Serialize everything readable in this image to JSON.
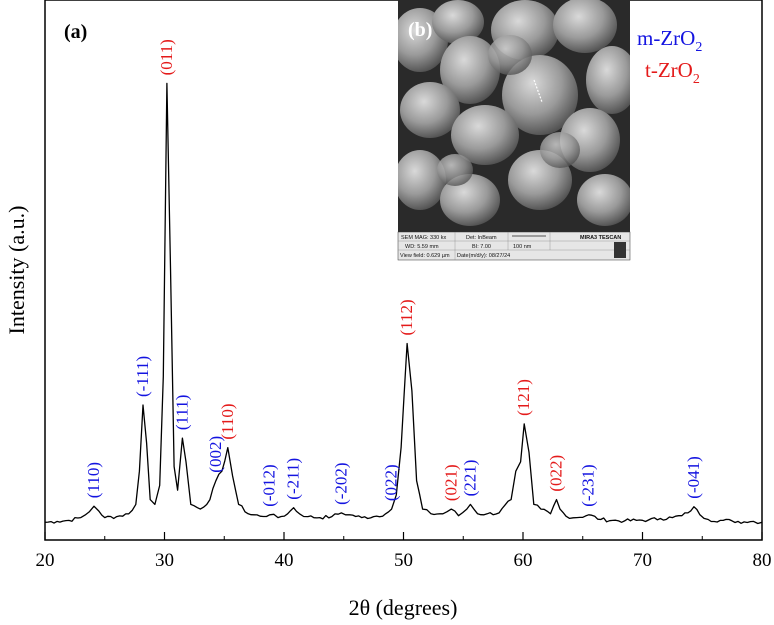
{
  "chart_data": {
    "type": "line",
    "panel_label_a": "(a)",
    "xlabel": "2θ (degrees)",
    "ylabel": "Intensity (a.u.)",
    "xlim": [
      20,
      80
    ],
    "ylim": [
      0,
      1
    ],
    "xticks": [
      20,
      30,
      40,
      50,
      60,
      70,
      80
    ],
    "grid": false,
    "series": [
      {
        "values_note": "relative intensity",
        "color": "#000000",
        "points": [
          [
            20,
            0.012
          ],
          [
            21,
            0.014
          ],
          [
            22,
            0.016
          ],
          [
            23,
            0.022
          ],
          [
            23.7,
            0.034
          ],
          [
            24.1,
            0.046
          ],
          [
            24.5,
            0.036
          ],
          [
            25,
            0.022
          ],
          [
            26,
            0.024
          ],
          [
            27,
            0.03
          ],
          [
            27.6,
            0.05
          ],
          [
            27.9,
            0.12
          ],
          [
            28.2,
            0.26
          ],
          [
            28.5,
            0.18
          ],
          [
            28.8,
            0.06
          ],
          [
            29.2,
            0.05
          ],
          [
            29.6,
            0.09
          ],
          [
            29.9,
            0.32
          ],
          [
            30.2,
            0.94
          ],
          [
            30.5,
            0.55
          ],
          [
            30.8,
            0.13
          ],
          [
            31.1,
            0.08
          ],
          [
            31.5,
            0.19
          ],
          [
            31.8,
            0.14
          ],
          [
            32.2,
            0.05
          ],
          [
            33,
            0.04
          ],
          [
            33.8,
            0.06
          ],
          [
            34.3,
            0.1
          ],
          [
            34.8,
            0.12
          ],
          [
            35.3,
            0.17
          ],
          [
            35.7,
            0.11
          ],
          [
            36.2,
            0.05
          ],
          [
            37,
            0.03
          ],
          [
            38,
            0.025
          ],
          [
            38.8,
            0.028
          ],
          [
            39.5,
            0.022
          ],
          [
            40.3,
            0.03
          ],
          [
            40.8,
            0.043
          ],
          [
            41.3,
            0.03
          ],
          [
            42,
            0.024
          ],
          [
            43,
            0.022
          ],
          [
            44,
            0.024
          ],
          [
            44.8,
            0.032
          ],
          [
            45.5,
            0.028
          ],
          [
            46.5,
            0.022
          ],
          [
            47.5,
            0.024
          ],
          [
            48.5,
            0.03
          ],
          [
            49,
            0.04
          ],
          [
            49.4,
            0.07
          ],
          [
            49.8,
            0.17
          ],
          [
            50.3,
            0.39
          ],
          [
            50.7,
            0.29
          ],
          [
            51.1,
            0.1
          ],
          [
            51.6,
            0.04
          ],
          [
            52.3,
            0.03
          ],
          [
            53.3,
            0.03
          ],
          [
            54,
            0.04
          ],
          [
            54.6,
            0.026
          ],
          [
            55.3,
            0.04
          ],
          [
            55.6,
            0.05
          ],
          [
            56.2,
            0.03
          ],
          [
            57,
            0.03
          ],
          [
            58,
            0.032
          ],
          [
            59,
            0.06
          ],
          [
            59.4,
            0.12
          ],
          [
            59.8,
            0.14
          ],
          [
            60.1,
            0.22
          ],
          [
            60.5,
            0.16
          ],
          [
            60.9,
            0.05
          ],
          [
            61.5,
            0.04
          ],
          [
            62.3,
            0.03
          ],
          [
            62.8,
            0.06
          ],
          [
            63.1,
            0.04
          ],
          [
            63.6,
            0.025
          ],
          [
            64.5,
            0.022
          ],
          [
            65.5,
            0.028
          ],
          [
            66.5,
            0.018
          ],
          [
            67.5,
            0.016
          ],
          [
            68.5,
            0.015
          ],
          [
            69.5,
            0.016
          ],
          [
            70.5,
            0.017
          ],
          [
            71.5,
            0.02
          ],
          [
            72.5,
            0.022
          ],
          [
            73.3,
            0.026
          ],
          [
            73.8,
            0.032
          ],
          [
            74.3,
            0.045
          ],
          [
            74.8,
            0.028
          ],
          [
            75.5,
            0.018
          ],
          [
            76.5,
            0.016
          ],
          [
            77.5,
            0.015
          ],
          [
            78.5,
            0.013
          ],
          [
            79.3,
            0.014
          ],
          [
            80,
            0.012
          ]
        ]
      }
    ],
    "peak_labels": [
      {
        "text": "(110)",
        "x": 24.1,
        "phase": "m"
      },
      {
        "text": "(-111)",
        "x": 28.2,
        "phase": "m"
      },
      {
        "text": "(011)",
        "x": 30.2,
        "phase": "t"
      },
      {
        "text": "(111)",
        "x": 31.5,
        "phase": "m"
      },
      {
        "text": "(002)",
        "x": 34.3,
        "phase": "m"
      },
      {
        "text": "(110)",
        "x": 35.3,
        "phase": "t"
      },
      {
        "text": "(-012)",
        "x": 38.8,
        "phase": "m"
      },
      {
        "text": "(-211)",
        "x": 40.8,
        "phase": "m"
      },
      {
        "text": "(-202)",
        "x": 44.8,
        "phase": "m"
      },
      {
        "text": "(022)",
        "x": 49.0,
        "phase": "m"
      },
      {
        "text": "(112)",
        "x": 50.3,
        "phase": "t"
      },
      {
        "text": "(021)",
        "x": 54.0,
        "phase": "t"
      },
      {
        "text": "(221)",
        "x": 55.6,
        "phase": "m"
      },
      {
        "text": "(121)",
        "x": 60.1,
        "phase": "t"
      },
      {
        "text": "(022)",
        "x": 62.8,
        "phase": "t"
      },
      {
        "text": "(-231)",
        "x": 65.5,
        "phase": "m"
      },
      {
        "text": "(-041)",
        "x": 74.3,
        "phase": "m"
      }
    ],
    "legend": {
      "placement": "top-right",
      "entries": [
        {
          "phase": "m",
          "prefix": "m-ZrO",
          "sub": "2",
          "color": "#1414e0"
        },
        {
          "phase": "t",
          "prefix": "t-ZrO",
          "sub": "2",
          "color": "#e41a1a"
        }
      ]
    },
    "inset": {
      "panel_label": "(b)",
      "placement": "top-center",
      "content": "SEM micrograph",
      "info_bar": {
        "row1": [
          "SEM MAG: 330 kx",
          "Det: InBeam",
          "MIRA3 TESCAN"
        ],
        "row2": [
          "WD: 5.59 mm",
          "BI: 7.00",
          "100 nm"
        ],
        "row3": [
          "View field: 0.629 µm",
          "Date(m/d/y): 08/27/24"
        ]
      }
    }
  },
  "colors": {
    "m_phase": "#1414e0",
    "t_phase": "#e41a1a",
    "line": "#000000"
  }
}
